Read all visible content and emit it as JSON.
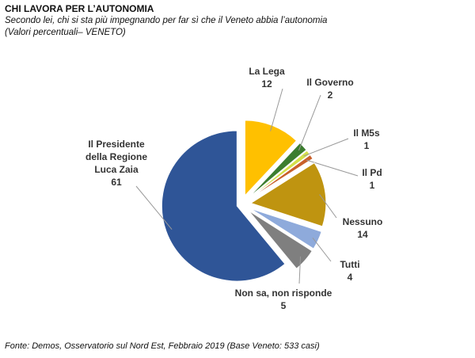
{
  "title": "CHI LAVORA PER L’AUTONOMIA",
  "subtitle": "Secondo lei, chi si sta più impegnando per far sì che il Veneto abbia l’autonomia",
  "note": "(Valori percentuali– VENETO)",
  "source": "Fonte: Demos, Osservatorio sul Nord Est, Febbraio 2019 (Base Veneto: 533 casi)",
  "chart_data": {
    "type": "pie",
    "categories": [
      "La Lega",
      "Il Governo",
      "Il M5s",
      "Il Pd",
      "Nessuno",
      "Tutti",
      "Non sa, non risponde",
      "Il Presidente della Regione Luca Zaia"
    ],
    "values": [
      12,
      2,
      1,
      1,
      14,
      4,
      5,
      61
    ],
    "colors": [
      "#ffc000",
      "#3c7d2f",
      "#d4e04a",
      "#c8602a",
      "#bf9410",
      "#8eaadb",
      "#7f7f7f",
      "#2f5597"
    ]
  }
}
